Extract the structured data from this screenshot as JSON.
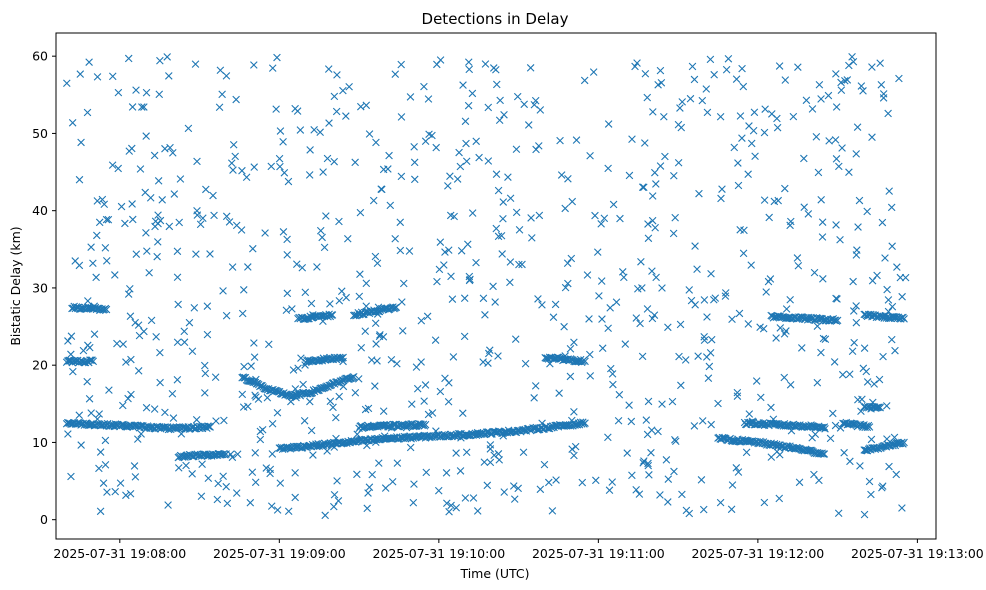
{
  "chart_data": {
    "type": "scatter",
    "title": "Detections in Delay",
    "xlabel": "Time (UTC)",
    "ylabel": "Bistatic Delay (km)",
    "x_axis": {
      "kind": "datetime",
      "range": [
        "2025-07-31 19:07:36",
        "2025-07-31 19:13:07"
      ],
      "ticks": [
        "2025-07-31 19:08:00",
        "2025-07-31 19:09:00",
        "2025-07-31 19:10:00",
        "2025-07-31 19:11:00",
        "2025-07-31 19:12:00",
        "2025-07-31 19:13:00"
      ]
    },
    "y_axis": {
      "range": [
        -2.5,
        63
      ],
      "ticks": [
        0,
        10,
        20,
        30,
        40,
        50,
        60
      ]
    },
    "grid": false,
    "legend": "none",
    "marker": "x",
    "color": "#1f77b4",
    "series": [
      {
        "tracks": [
          {
            "points": [
              [
                "2025-07-31 19:07:40",
                12.5
              ],
              [
                "2025-07-31 19:08:00",
                12.2
              ],
              [
                "2025-07-31 19:08:20",
                11.8
              ],
              [
                "2025-07-31 19:08:34",
                12.0
              ]
            ]
          },
          {
            "points": [
              [
                "2025-07-31 19:08:22",
                8.2
              ],
              [
                "2025-07-31 19:08:40",
                8.5
              ]
            ]
          },
          {
            "points": [
              [
                "2025-07-31 19:07:40",
                20.5
              ],
              [
                "2025-07-31 19:07:50",
                20.5
              ]
            ]
          },
          {
            "points": [
              [
                "2025-07-31 19:07:42",
                27.5
              ],
              [
                "2025-07-31 19:07:55",
                27.2
              ]
            ]
          },
          {
            "points": [
              [
                "2025-07-31 19:08:46",
                18.5
              ],
              [
                "2025-07-31 19:08:56",
                16.8
              ],
              [
                "2025-07-31 19:09:05",
                16.0
              ],
              [
                "2025-07-31 19:09:12",
                16.5
              ],
              [
                "2025-07-31 19:09:20",
                17.5
              ],
              [
                "2025-07-31 19:09:28",
                18.5
              ]
            ]
          },
          {
            "points": [
              [
                "2025-07-31 19:09:07",
                26.0
              ],
              [
                "2025-07-31 19:09:20",
                26.5
              ]
            ]
          },
          {
            "points": [
              [
                "2025-07-31 19:09:10",
                20.5
              ],
              [
                "2025-07-31 19:09:24",
                21.0
              ]
            ]
          },
          {
            "points": [
              [
                "2025-07-31 19:09:28",
                26.5
              ],
              [
                "2025-07-31 19:09:44",
                27.5
              ]
            ]
          },
          {
            "points": [
              [
                "2025-07-31 19:09:00",
                9.2
              ],
              [
                "2025-07-31 19:09:10",
                9.5
              ],
              [
                "2025-07-31 19:09:25",
                10.0
              ],
              [
                "2025-07-31 19:09:40",
                10.5
              ],
              [
                "2025-07-31 19:10:10",
                11.0
              ],
              [
                "2025-07-31 19:10:30",
                11.5
              ],
              [
                "2025-07-31 19:10:55",
                12.5
              ]
            ]
          },
          {
            "points": [
              [
                "2025-07-31 19:09:30",
                12.0
              ],
              [
                "2025-07-31 19:09:55",
                12.3
              ]
            ]
          },
          {
            "points": [
              [
                "2025-07-31 19:10:40",
                21.0
              ],
              [
                "2025-07-31 19:10:55",
                20.5
              ]
            ]
          },
          {
            "points": [
              [
                "2025-07-31 19:11:45",
                10.5
              ],
              [
                "2025-07-31 19:12:00",
                10.0
              ],
              [
                "2025-07-31 19:12:15",
                9.2
              ],
              [
                "2025-07-31 19:12:25",
                8.5
              ]
            ]
          },
          {
            "points": [
              [
                "2025-07-31 19:11:55",
                12.5
              ],
              [
                "2025-07-31 19:12:25",
                12.0
              ]
            ]
          },
          {
            "points": [
              [
                "2025-07-31 19:12:05",
                26.3
              ],
              [
                "2025-07-31 19:12:30",
                25.8
              ]
            ]
          },
          {
            "points": [
              [
                "2025-07-31 19:12:32",
                12.5
              ],
              [
                "2025-07-31 19:12:42",
                12.0
              ]
            ]
          },
          {
            "points": [
              [
                "2025-07-31 19:12:40",
                26.5
              ],
              [
                "2025-07-31 19:12:55",
                26.0
              ]
            ]
          },
          {
            "points": [
              [
                "2025-07-31 19:12:40",
                9.0
              ],
              [
                "2025-07-31 19:12:55",
                10.0
              ]
            ]
          },
          {
            "points": [
              [
                "2025-07-31 19:12:40",
                14.5
              ],
              [
                "2025-07-31 19:12:46",
                14.5
              ]
            ]
          }
        ],
        "background": {
          "description_free": true,
          "count": 900,
          "x_range": [
            "2025-07-31 19:07:40",
            "2025-07-31 19:12:56"
          ],
          "y_range": [
            0.5,
            60
          ]
        }
      }
    ]
  }
}
